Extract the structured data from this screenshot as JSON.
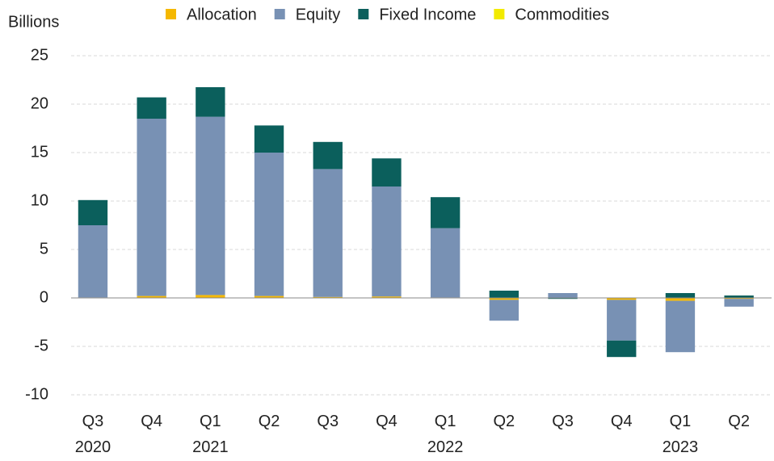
{
  "chart_data": {
    "type": "bar",
    "stacked": true,
    "y_axis_label": "Billions",
    "categories": [
      "Q3\n2020",
      "Q4",
      "Q1\n2021",
      "Q2",
      "Q3",
      "Q4",
      "Q1\n2022",
      "Q2",
      "Q3",
      "Q4",
      "Q1\n2023",
      "Q2"
    ],
    "series": [
      {
        "name": "Allocation",
        "color": "#f5b800",
        "values": [
          0.05,
          0.2,
          0.3,
          0.2,
          0.1,
          0.15,
          0.05,
          -0.2,
          0,
          -0.2,
          -0.3,
          -0.1
        ]
      },
      {
        "name": "Equity",
        "color": "#7891b4",
        "values": [
          7.45,
          18.3,
          18.4,
          14.8,
          13.2,
          11.35,
          7.15,
          -2.15,
          0.5,
          -4.2,
          -5.3,
          -0.8
        ]
      },
      {
        "name": "Fixed Income",
        "color": "#0b5f5c",
        "values": [
          2.6,
          2.2,
          3.05,
          2.8,
          2.8,
          2.9,
          3.2,
          0.75,
          -0.1,
          -1.7,
          0.5,
          0.25
        ]
      },
      {
        "name": "Commodities",
        "color": "#f2ea00",
        "values": [
          0,
          0,
          0,
          0,
          0,
          0,
          0,
          0,
          0,
          0,
          0,
          0
        ]
      }
    ],
    "ylim": [
      -10,
      25
    ],
    "yticks": [
      -10,
      -5,
      0,
      5,
      10,
      15,
      20,
      25
    ],
    "grid": true,
    "legend": "top"
  }
}
